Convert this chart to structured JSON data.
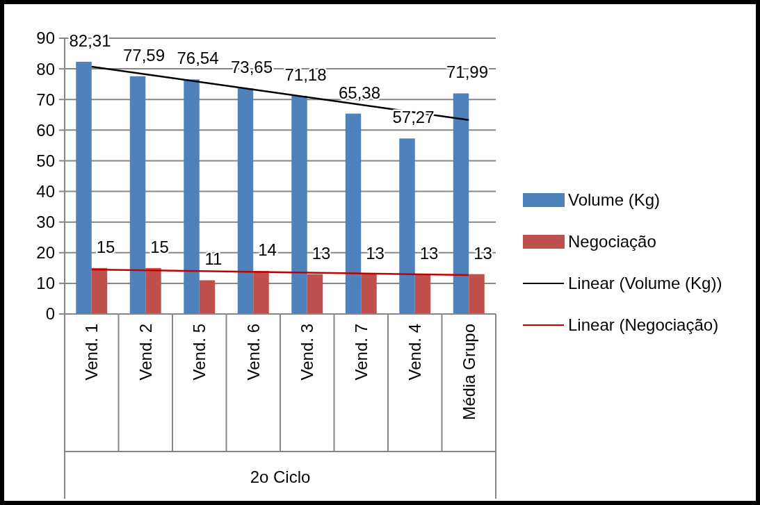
{
  "chart_data": {
    "type": "bar",
    "xlabel": "2o Ciclo",
    "categories": [
      "Vend. 1",
      "Vend. 2",
      "Vend. 5",
      "Vend. 6",
      "Vend. 3",
      "Vend. 7",
      "Vend. 4",
      "Média Grupo"
    ],
    "series": [
      {
        "name": "Volume (Kg)",
        "color": "#4f81bd",
        "values": [
          82.31,
          77.59,
          76.54,
          73.65,
          71.18,
          65.38,
          57.27,
          71.99
        ],
        "value_labels": [
          "82,31",
          "77,59",
          "76,54",
          "73,65",
          "71,18",
          "65,38",
          "57,27",
          "71,99"
        ]
      },
      {
        "name": "Negociação",
        "color": "#c0504d",
        "values": [
          15,
          15,
          11,
          14,
          13,
          13,
          13,
          13
        ],
        "value_labels": [
          "15",
          "15",
          "11",
          "14",
          "13",
          "13",
          "13",
          "13"
        ]
      },
      {
        "name": "Linear (Volume (Kg))",
        "type": "line",
        "color": "#000000",
        "x": [
          "Vend. 1",
          "Média Grupo"
        ],
        "values": [
          80.7,
          63.3
        ]
      },
      {
        "name": "Linear (Negociação)",
        "type": "line",
        "color": "#c00000",
        "x": [
          "Vend. 1",
          "Média Grupo"
        ],
        "values": [
          14.5,
          12.7
        ]
      }
    ],
    "ylim": [
      0,
      90
    ],
    "yticks": [
      0,
      10,
      20,
      30,
      40,
      50,
      60,
      70,
      80,
      90
    ],
    "grid": "y",
    "legend": "right"
  }
}
